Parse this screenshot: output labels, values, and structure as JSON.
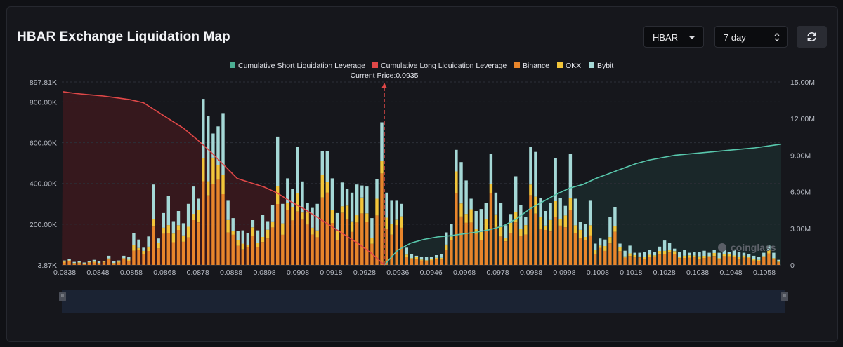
{
  "header": {
    "title": "HBAR Exchange Liquidation Map",
    "coin_select": "HBAR",
    "period_select": "7 day"
  },
  "icons": {
    "refresh": "refresh-icon",
    "coin_caret": "chevron-down-icon",
    "period_caret": "updown-icon"
  },
  "watermark": "coinglass",
  "colors": {
    "binance": "#e8852b",
    "okx": "#f2c53a",
    "bybit": "#a5d8d6",
    "short_cum": "#58c8ad",
    "long_cum": "#e04848"
  },
  "chart_data": {
    "type": "bar",
    "legend": [
      {
        "name": "Cumulative Short Liquidation Leverage",
        "color": "#4caf94"
      },
      {
        "name": "Cumulative Long Liquidation Leverage",
        "color": "#e04848"
      },
      {
        "name": "Binance",
        "color": "#e8852b"
      },
      {
        "name": "OKX",
        "color": "#f2c53a"
      },
      {
        "name": "Bybit",
        "color": "#a5d8d6"
      }
    ],
    "legend_position": "top-center",
    "current_price_label": "Current Price:0.0935",
    "current_price": 0.0935,
    "x_ticks": [
      "0.0838",
      "0.0848",
      "0.0858",
      "0.0868",
      "0.0878",
      "0.0888",
      "0.0898",
      "0.0908",
      "0.0918",
      "0.0928",
      "0.0936",
      "0.0946",
      "0.0968",
      "0.0978",
      "0.0988",
      "0.0998",
      "0.1008",
      "0.1018",
      "0.1028",
      "0.1038",
      "0.1048",
      "0.1058"
    ],
    "y_left_ticks": [
      "897.81K",
      "800.00K",
      "600.00K",
      "400.00K",
      "200.00K",
      "3.87K"
    ],
    "y_left_range": [
      3870,
      897810
    ],
    "y_right_ticks": [
      "15.00M",
      "12.00M",
      "9.00M",
      "6.00M",
      "3.00M",
      "0"
    ],
    "y_right_range": [
      0,
      15000000
    ],
    "grid": true,
    "bars_total_k": [
      22,
      30,
      15,
      20,
      12,
      18,
      25,
      18,
      20,
      45,
      18,
      22,
      45,
      38,
      155,
      125,
      85,
      140,
      395,
      130,
      255,
      340,
      215,
      265,
      205,
      300,
      385,
      325,
      815,
      730,
      645,
      680,
      745,
      315,
      230,
      165,
      170,
      155,
      220,
      170,
      245,
      215,
      295,
      630,
      300,
      425,
      375,
      580,
      410,
      305,
      280,
      300,
      560,
      560,
      425,
      255,
      405,
      375,
      355,
      395,
      390,
      385,
      230,
      420,
      700,
      355,
      315,
      315,
      300,
      85,
      55,
      45,
      40,
      40,
      40,
      48,
      52,
      160,
      200,
      565,
      505,
      415,
      325,
      265,
      275,
      305,
      545,
      355,
      305,
      195,
      250,
      435,
      295,
      235,
      580,
      555,
      330,
      265,
      305,
      525,
      330,
      290,
      545,
      325,
      210,
      200,
      315,
      105,
      130,
      125,
      235,
      285,
      105,
      70,
      95,
      60,
      60,
      65,
      75,
      65,
      90,
      120,
      110,
      80,
      65,
      75,
      60,
      65,
      65,
      70,
      60,
      75,
      60,
      80,
      65,
      75,
      65,
      60,
      55,
      45,
      40,
      60,
      95,
      60,
      25
    ],
    "series": [
      {
        "name": "Cumulative Short Liquidation Leverage",
        "x_start": 0.0935,
        "values_m": [
          0,
          1.2,
          1.8,
          2.1,
          2.3,
          2.4,
          2.55,
          2.7,
          2.9,
          3.2,
          3.8,
          4.6,
          5.2,
          5.8,
          6.3,
          6.6,
          7.1,
          7.5,
          7.9,
          8.3,
          8.6,
          8.8,
          9.0,
          9.1,
          9.2,
          9.3,
          9.4,
          9.5,
          9.6,
          9.75,
          9.9
        ]
      },
      {
        "name": "Cumulative Long Liquidation Leverage",
        "x_end": 0.0935,
        "values_m": [
          14.2,
          14.05,
          13.95,
          13.85,
          13.7,
          13.55,
          13.3,
          12.6,
          11.9,
          11.2,
          10.3,
          9.3,
          8.2,
          7.1,
          6.75,
          6.4,
          5.9,
          5.2,
          4.6,
          3.9,
          3.2,
          2.5,
          1.8,
          1.0,
          0
        ]
      }
    ]
  }
}
